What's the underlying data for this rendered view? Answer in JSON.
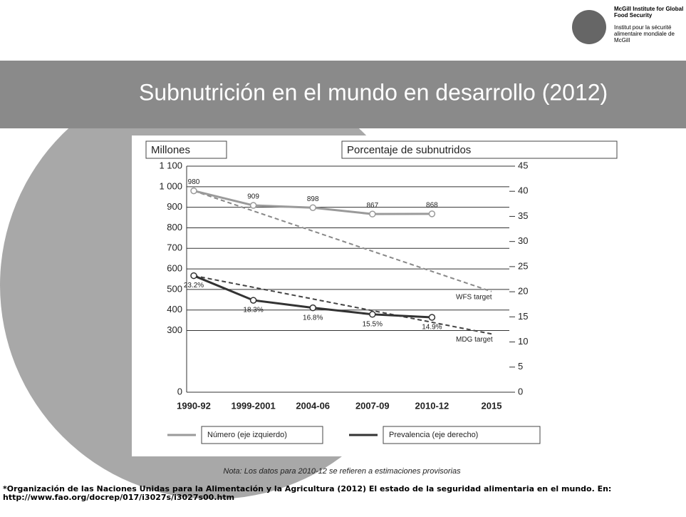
{
  "chart_data": {
    "type": "line",
    "title": "Subnutrición en el mundo en desarrollo (2012)",
    "y_label": "Millones",
    "y2_label": "Porcentaje de subnutridos",
    "categories": [
      "1990-92",
      "1999-2001",
      "2004-06",
      "2007-09",
      "2010-12",
      "2015"
    ],
    "series": [
      {
        "name": "Número (eje izquierdo)",
        "color": "#9a9a9a",
        "axis": "y",
        "values": [
          980,
          909,
          898,
          867,
          868,
          null
        ]
      },
      {
        "name": "Prevalencia (eje derecho)",
        "color": "#333333",
        "axis": "y2",
        "values": [
          23.2,
          18.3,
          16.8,
          15.5,
          14.9,
          null
        ],
        "value_labels": [
          "23.2%",
          "18.3%",
          "16.8%",
          "15.5%",
          "14.9%",
          null
        ]
      }
    ],
    "targets": [
      {
        "name": "WFS target",
        "axis": "y",
        "x": [
          "1990-92",
          "2015"
        ],
        "values": [
          980,
          490
        ],
        "color": "#888888"
      },
      {
        "name": "MDG target",
        "axis": "y2",
        "x": [
          "1990-92",
          "2015"
        ],
        "values": [
          23.2,
          11.6
        ],
        "color": "#444444"
      }
    ],
    "ylim": [
      0,
      1100
    ],
    "yticks": [
      0,
      300,
      400,
      500,
      600,
      700,
      800,
      900,
      {
        "value": 1000,
        "label": "1 000"
      },
      {
        "value": 1100,
        "label": "1 100"
      }
    ],
    "y2lim": [
      0,
      45
    ],
    "y2ticks": [
      0,
      5,
      10,
      15,
      20,
      25,
      30,
      35,
      40,
      45
    ],
    "grid": true,
    "note": "Nota: Los datos para 2010-12 se refieren a estimaciones provisorias",
    "source": "*Organización de las Naciones Unidas para la Alimentación y la Agricultura (2012) El estado de la seguridad alimentaria en el mundo. En: http://www.fao.org/docrep/017/i3027s/i3027s00.htm",
    "logo_en": "McGill Institute for Global Food Security",
    "logo_fr": "Institut pour la sécurité alimentaire mondiale de McGill"
  }
}
